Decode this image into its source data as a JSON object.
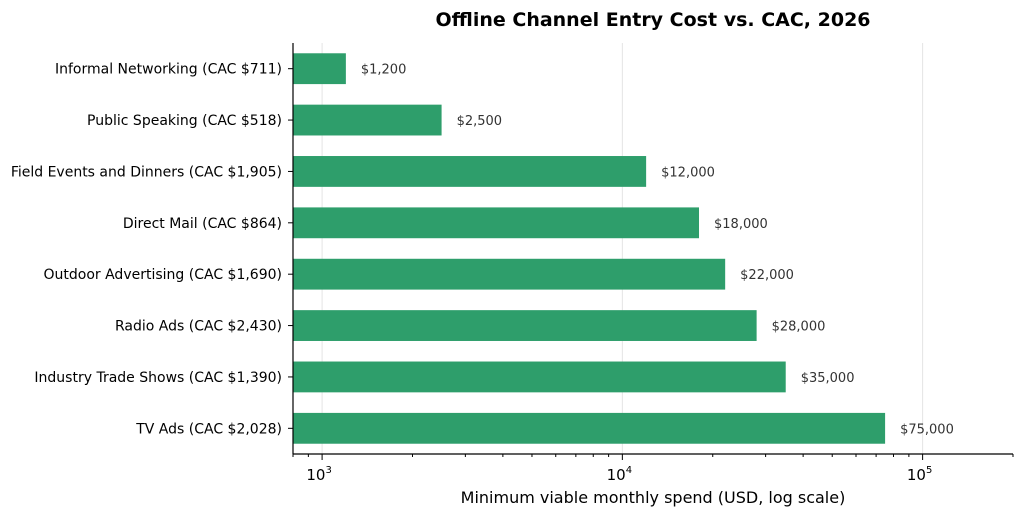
{
  "chart_data": {
    "type": "bar",
    "orientation": "horizontal",
    "title": "Offline Channel Entry Cost vs. CAC, 2026",
    "xlabel": "Minimum viable monthly spend (USD, log scale)",
    "ylabel": "",
    "x_scale": "log",
    "xlim": [
      800,
      200000
    ],
    "xticks": [
      {
        "value": 1000,
        "base": "10",
        "exp": "3"
      },
      {
        "value": 10000,
        "base": "10",
        "exp": "4"
      },
      {
        "value": 100000,
        "base": "10",
        "exp": "5"
      }
    ],
    "grid": "vertical major lines",
    "bar_color": "#2e9e6b",
    "categories": [
      "Informal Networking  (CAC $711)",
      "Public Speaking  (CAC $518)",
      "Field Events and Dinners  (CAC $1,905)",
      "Direct Mail  (CAC $864)",
      "Outdoor Advertising  (CAC $1,690)",
      "Radio Ads  (CAC $2,430)",
      "Industry Trade Shows  (CAC $1,390)",
      "TV Ads  (CAC $2,028)"
    ],
    "values": [
      1200,
      2500,
      12000,
      18000,
      22000,
      28000,
      35000,
      75000
    ],
    "value_labels": [
      "$1,200",
      "$2,500",
      "$12,000",
      "$18,000",
      "$22,000",
      "$28,000",
      "$35,000",
      "$75,000"
    ]
  }
}
